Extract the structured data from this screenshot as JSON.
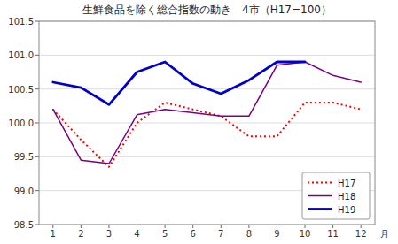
{
  "chart_data": {
    "type": "line",
    "title": "生鮮食品を除く総合指数の動き　4市（H17=100）",
    "xlabel": "月",
    "x": [
      1,
      2,
      3,
      4,
      5,
      6,
      7,
      8,
      9,
      10,
      11,
      12
    ],
    "xlim": [
      0.5,
      12.5
    ],
    "xticks": [
      1,
      2,
      3,
      4,
      5,
      6,
      7,
      8,
      9,
      10,
      11,
      12
    ],
    "ylim": [
      98.5,
      101.5
    ],
    "yticks": [
      98.5,
      {
        "value": 99.0,
        "label": "99.0"
      },
      99.5,
      {
        "value": 100.0,
        "label": "100.0"
      },
      100.5,
      {
        "value": 101.0,
        "label": "101.0"
      },
      101.5
    ],
    "grid": true,
    "legend": "lower right",
    "series": [
      {
        "name": "H17",
        "color": "#ff0000",
        "line_style": "dotted",
        "values": [
          100.2,
          99.75,
          99.35,
          100.0,
          100.3,
          100.2,
          100.1,
          99.8,
          99.8,
          100.3,
          100.3,
          100.2
        ]
      },
      {
        "name": "H18",
        "color": "#7b0080",
        "line_style": "solid",
        "values": [
          100.2,
          99.45,
          99.4,
          100.12,
          100.2,
          100.15,
          100.1,
          100.1,
          100.85,
          100.9,
          100.7,
          100.6
        ]
      },
      {
        "name": "H19",
        "color": "#0000cc",
        "line_style": "solid",
        "values": [
          100.6,
          100.52,
          100.27,
          100.75,
          100.9,
          100.58,
          100.43,
          100.63,
          100.9,
          100.9,
          null,
          null
        ]
      }
    ]
  }
}
